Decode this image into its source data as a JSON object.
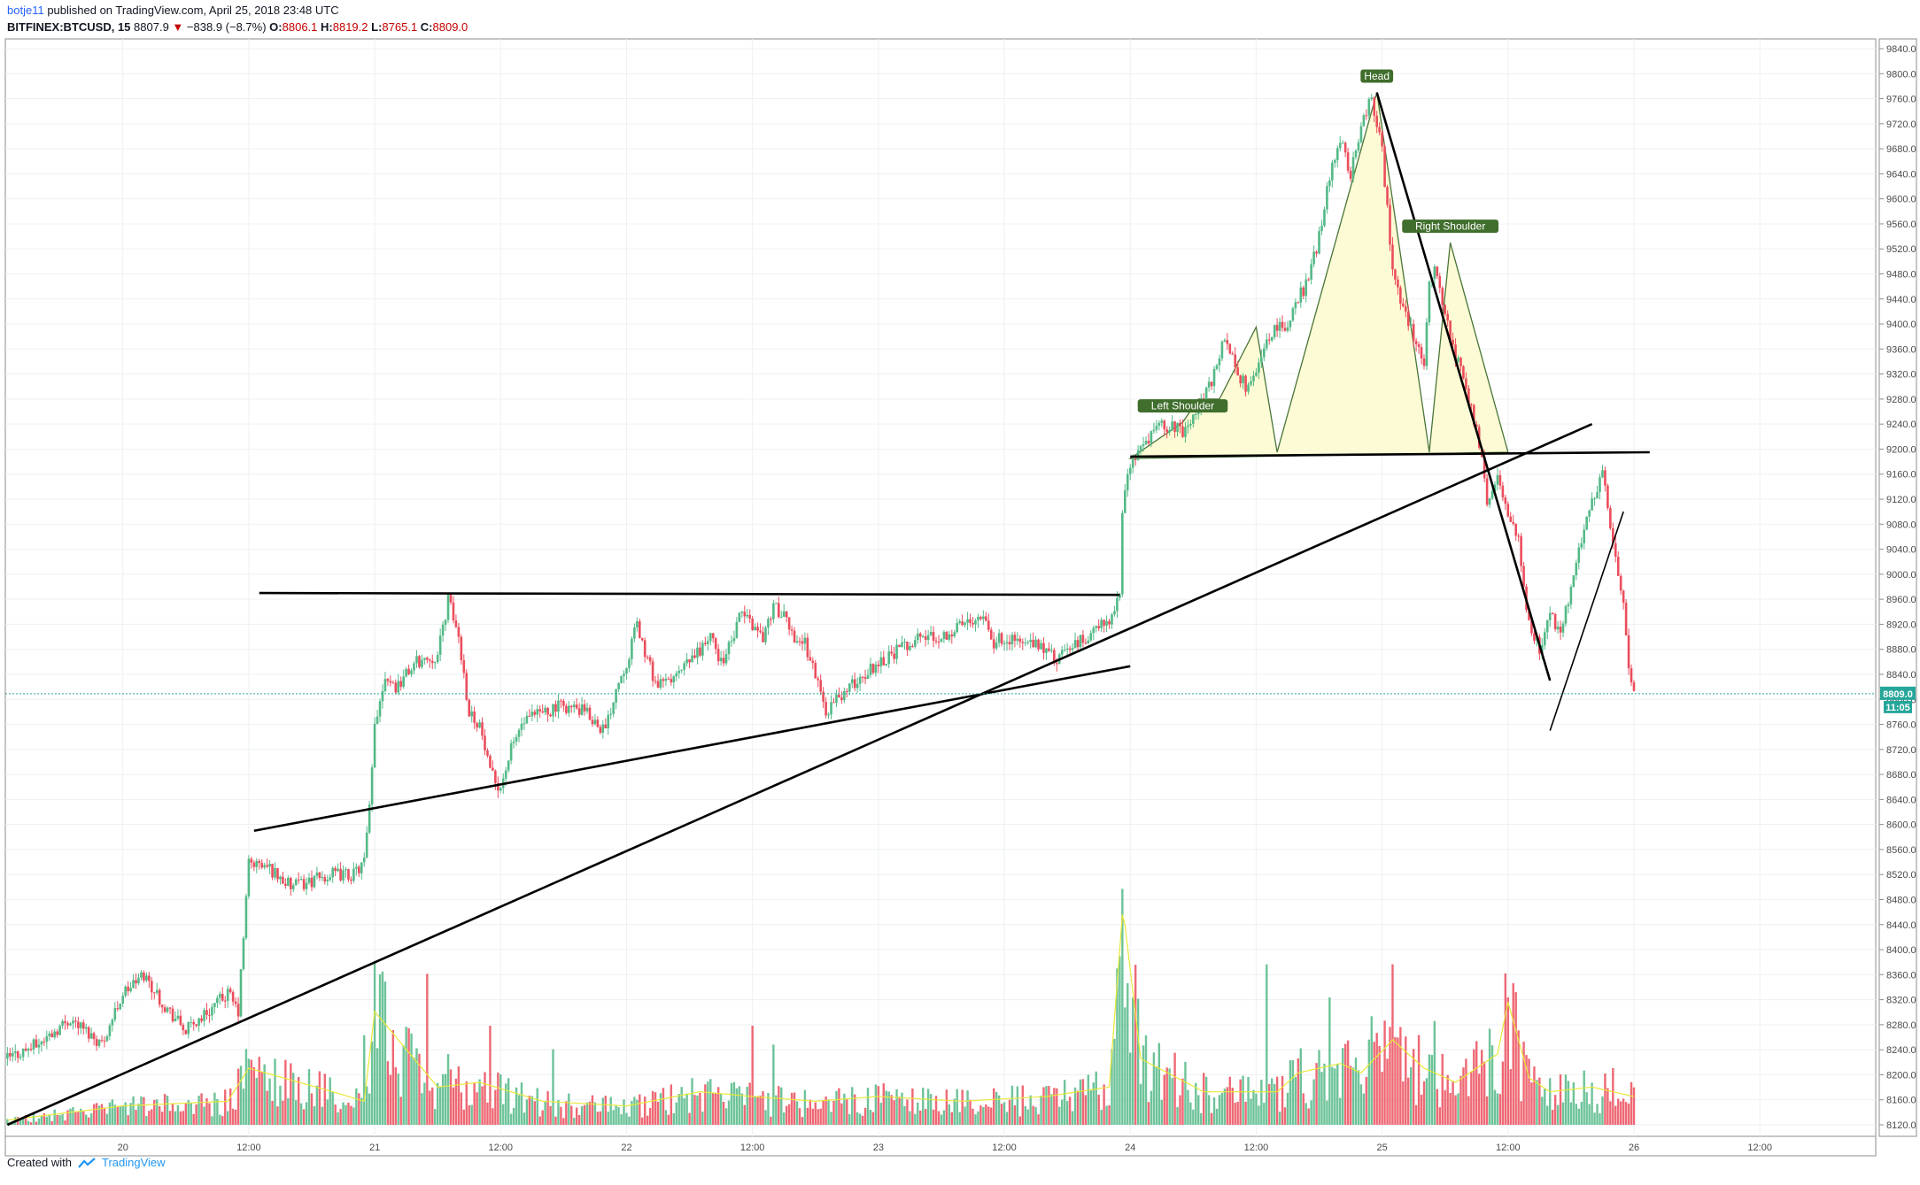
{
  "header": {
    "author": "botje11",
    "published_text": "published on TradingView.com, April 25, 2018 23:48 UTC",
    "symbol": "BITFINEX:BTCUSD, 15",
    "last": "8807.9",
    "change": "−838.9 (−8.7%)",
    "o_label": "O:",
    "o_value": "8806.1",
    "h_label": "H:",
    "h_value": "8819.2",
    "l_label": "L:",
    "l_value": "8765.1",
    "c_label": "C:",
    "c_value": "8809.0"
  },
  "footer": {
    "created_with": "Created with",
    "brand": "TradingView"
  },
  "price_label": {
    "price": "8809.0",
    "countdown": "11:05"
  },
  "colors": {
    "up": "#53b987",
    "down": "#eb4d5c",
    "pattern_fill": "#fdfbd3",
    "pattern_stroke": "#406e2d",
    "volume_ma": "#e8e83a"
  },
  "chart_data": {
    "type": "candlestick",
    "symbol": "BITFINEX:BTCUSD",
    "interval": "15",
    "y_ticks": [
      8120,
      8160,
      8200,
      8240,
      8280,
      8320,
      8360,
      8400,
      8440,
      8480,
      8520,
      8560,
      8600,
      8640,
      8680,
      8720,
      8760,
      8800,
      8840,
      8880,
      8920,
      8960,
      9000,
      9040,
      9080,
      9120,
      9160,
      9200,
      9240,
      9280,
      9320,
      9360,
      9400,
      9440,
      9480,
      9520,
      9560,
      9600,
      9640,
      9680,
      9720,
      9760,
      9800,
      9840
    ],
    "ylim": [
      8110,
      9850
    ],
    "x_tick_labels": [
      "20",
      "12:00",
      "21",
      "12:00",
      "22",
      "12:00",
      "23",
      "12:00",
      "24",
      "12:00",
      "25",
      "12:00",
      "26",
      "12:00"
    ],
    "xlim_hours": [
      -11.2,
      144
    ],
    "x_tick_hours": [
      0,
      12,
      24,
      36,
      48,
      60,
      72,
      84,
      96,
      108,
      120,
      132,
      144,
      156
    ],
    "price_path": [
      [
        -11,
        8226
      ],
      [
        -8,
        8250
      ],
      [
        -5,
        8290
      ],
      [
        -2,
        8250
      ],
      [
        0,
        8330
      ],
      [
        2,
        8360
      ],
      [
        4,
        8310
      ],
      [
        6,
        8270
      ],
      [
        8,
        8300
      ],
      [
        10,
        8330
      ],
      [
        11,
        8300
      ],
      [
        12,
        8540
      ],
      [
        14,
        8530
      ],
      [
        16,
        8500
      ],
      [
        18,
        8510
      ],
      [
        20,
        8520
      ],
      [
        22,
        8520
      ],
      [
        23,
        8540
      ],
      [
        23.6,
        8640
      ],
      [
        24,
        8760
      ],
      [
        25,
        8840
      ],
      [
        26,
        8820
      ],
      [
        28,
        8860
      ],
      [
        30,
        8870
      ],
      [
        31,
        8960
      ],
      [
        32,
        8900
      ],
      [
        33,
        8780
      ],
      [
        34,
        8760
      ],
      [
        35,
        8680
      ],
      [
        36,
        8660
      ],
      [
        37,
        8720
      ],
      [
        38,
        8760
      ],
      [
        40,
        8780
      ],
      [
        42,
        8790
      ],
      [
        44,
        8780
      ],
      [
        46,
        8750
      ],
      [
        47,
        8820
      ],
      [
        48,
        8860
      ],
      [
        49,
        8920
      ],
      [
        50,
        8860
      ],
      [
        51,
        8820
      ],
      [
        53,
        8840
      ],
      [
        55,
        8880
      ],
      [
        56,
        8900
      ],
      [
        57,
        8860
      ],
      [
        58,
        8890
      ],
      [
        59,
        8940
      ],
      [
        60,
        8920
      ],
      [
        61,
        8900
      ],
      [
        62,
        8950
      ],
      [
        63,
        8930
      ],
      [
        64,
        8900
      ],
      [
        65,
        8890
      ],
      [
        66,
        8840
      ],
      [
        67,
        8780
      ],
      [
        68,
        8800
      ],
      [
        70,
        8830
      ],
      [
        72,
        8860
      ],
      [
        74,
        8880
      ],
      [
        75,
        8890
      ],
      [
        76,
        8900
      ],
      [
        78,
        8900
      ],
      [
        80,
        8920
      ],
      [
        82,
        8940
      ],
      [
        83,
        8890
      ],
      [
        84,
        8900
      ],
      [
        86,
        8890
      ],
      [
        88,
        8880
      ],
      [
        89,
        8860
      ],
      [
        90,
        8880
      ],
      [
        92,
        8900
      ],
      [
        94,
        8930
      ],
      [
        95,
        8960
      ],
      [
        95.3,
        9120
      ],
      [
        95.8,
        9170
      ],
      [
        97,
        9200
      ],
      [
        99,
        9240
      ],
      [
        101,
        9230
      ],
      [
        103,
        9280
      ],
      [
        104,
        9320
      ],
      [
        105,
        9380
      ],
      [
        106,
        9330
      ],
      [
        107,
        9300
      ],
      [
        108,
        9320
      ],
      [
        109,
        9380
      ],
      [
        111,
        9400
      ],
      [
        112,
        9440
      ],
      [
        113,
        9470
      ],
      [
        114,
        9540
      ],
      [
        115,
        9640
      ],
      [
        116,
        9700
      ],
      [
        117,
        9640
      ],
      [
        118,
        9720
      ],
      [
        119,
        9760
      ],
      [
        120,
        9680
      ],
      [
        121,
        9480
      ],
      [
        122,
        9420
      ],
      [
        123,
        9380
      ],
      [
        124,
        9340
      ],
      [
        124.5,
        9460
      ],
      [
        125,
        9490
      ],
      [
        126,
        9420
      ],
      [
        127,
        9350
      ],
      [
        128,
        9300
      ],
      [
        129,
        9230
      ],
      [
        129.5,
        9180
      ],
      [
        130,
        9120
      ],
      [
        131,
        9150
      ],
      [
        132,
        9100
      ],
      [
        133,
        9050
      ],
      [
        134,
        8920
      ],
      [
        135,
        8880
      ],
      [
        136,
        8940
      ],
      [
        137,
        8900
      ],
      [
        138,
        8980
      ],
      [
        139,
        9060
      ],
      [
        140,
        9120
      ],
      [
        141,
        9160
      ],
      [
        142,
        9050
      ],
      [
        143,
        8950
      ],
      [
        143.5,
        8850
      ],
      [
        144,
        8809
      ]
    ],
    "volume_path": [
      [
        -11,
        5
      ],
      [
        0,
        20
      ],
      [
        10,
        25
      ],
      [
        12,
        60
      ],
      [
        20,
        35
      ],
      [
        23,
        25
      ],
      [
        24,
        120
      ],
      [
        30,
        40
      ],
      [
        34,
        45
      ],
      [
        40,
        25
      ],
      [
        48,
        20
      ],
      [
        55,
        35
      ],
      [
        60,
        30
      ],
      [
        66,
        25
      ],
      [
        72,
        30
      ],
      [
        80,
        25
      ],
      [
        88,
        30
      ],
      [
        94,
        40
      ],
      [
        95.3,
        230
      ],
      [
        97,
        70
      ],
      [
        103,
        35
      ],
      [
        110,
        35
      ],
      [
        112,
        55
      ],
      [
        116,
        65
      ],
      [
        118,
        55
      ],
      [
        121,
        90
      ],
      [
        124,
        60
      ],
      [
        127,
        45
      ],
      [
        129,
        60
      ],
      [
        131,
        75
      ],
      [
        132,
        130
      ],
      [
        134,
        50
      ],
      [
        136,
        35
      ],
      [
        140,
        40
      ],
      [
        144,
        30
      ]
    ],
    "volume_spikes": [
      [
        12,
        70
      ],
      [
        23,
        95
      ],
      [
        29,
        160
      ],
      [
        31,
        75
      ],
      [
        35,
        105
      ],
      [
        41,
        80
      ],
      [
        60,
        105
      ],
      [
        62,
        85
      ],
      [
        95.3,
        250
      ],
      [
        95.7,
        150
      ],
      [
        103,
        55
      ],
      [
        109,
        170
      ],
      [
        115,
        135
      ],
      [
        119,
        115
      ],
      [
        120.5,
        70
      ],
      [
        121,
        170
      ],
      [
        122.5,
        50
      ],
      [
        125,
        110
      ],
      [
        128,
        70
      ],
      [
        132,
        135
      ],
      [
        132.5,
        150
      ],
      [
        133,
        100
      ],
      [
        134,
        70
      ],
      [
        135,
        50
      ],
      [
        142,
        60
      ]
    ],
    "volume_ylim": [
      0,
      300
    ],
    "annotations": [
      {
        "text": "Left Shoulder"
      },
      {
        "text": "Head"
      },
      {
        "text": "Right Shoulder"
      }
    ],
    "pattern_points": [
      [
        96,
        9185
      ],
      [
        101,
        9243
      ],
      [
        102.5,
        9280
      ],
      [
        104.5,
        9280
      ],
      [
        108,
        9395
      ],
      [
        110,
        9195
      ],
      [
        119.5,
        9770
      ],
      [
        124.5,
        9195
      ],
      [
        126.5,
        9530
      ],
      [
        132,
        9195
      ]
    ],
    "trendlines": [
      [
        [
          13,
          8970
        ],
        [
          95,
          8967
        ]
      ],
      [
        [
          12.5,
          8590
        ],
        [
          96,
          8853
        ]
      ],
      [
        [
          -11,
          8120
        ],
        [
          140,
          9240
        ]
      ],
      [
        [
          96,
          9188
        ],
        [
          145.5,
          9195
        ]
      ],
      [
        [
          119.5,
          9770
        ],
        [
          136,
          8830
        ]
      ],
      [
        [
          136,
          8750
        ],
        [
          143,
          9100
        ]
      ]
    ]
  }
}
